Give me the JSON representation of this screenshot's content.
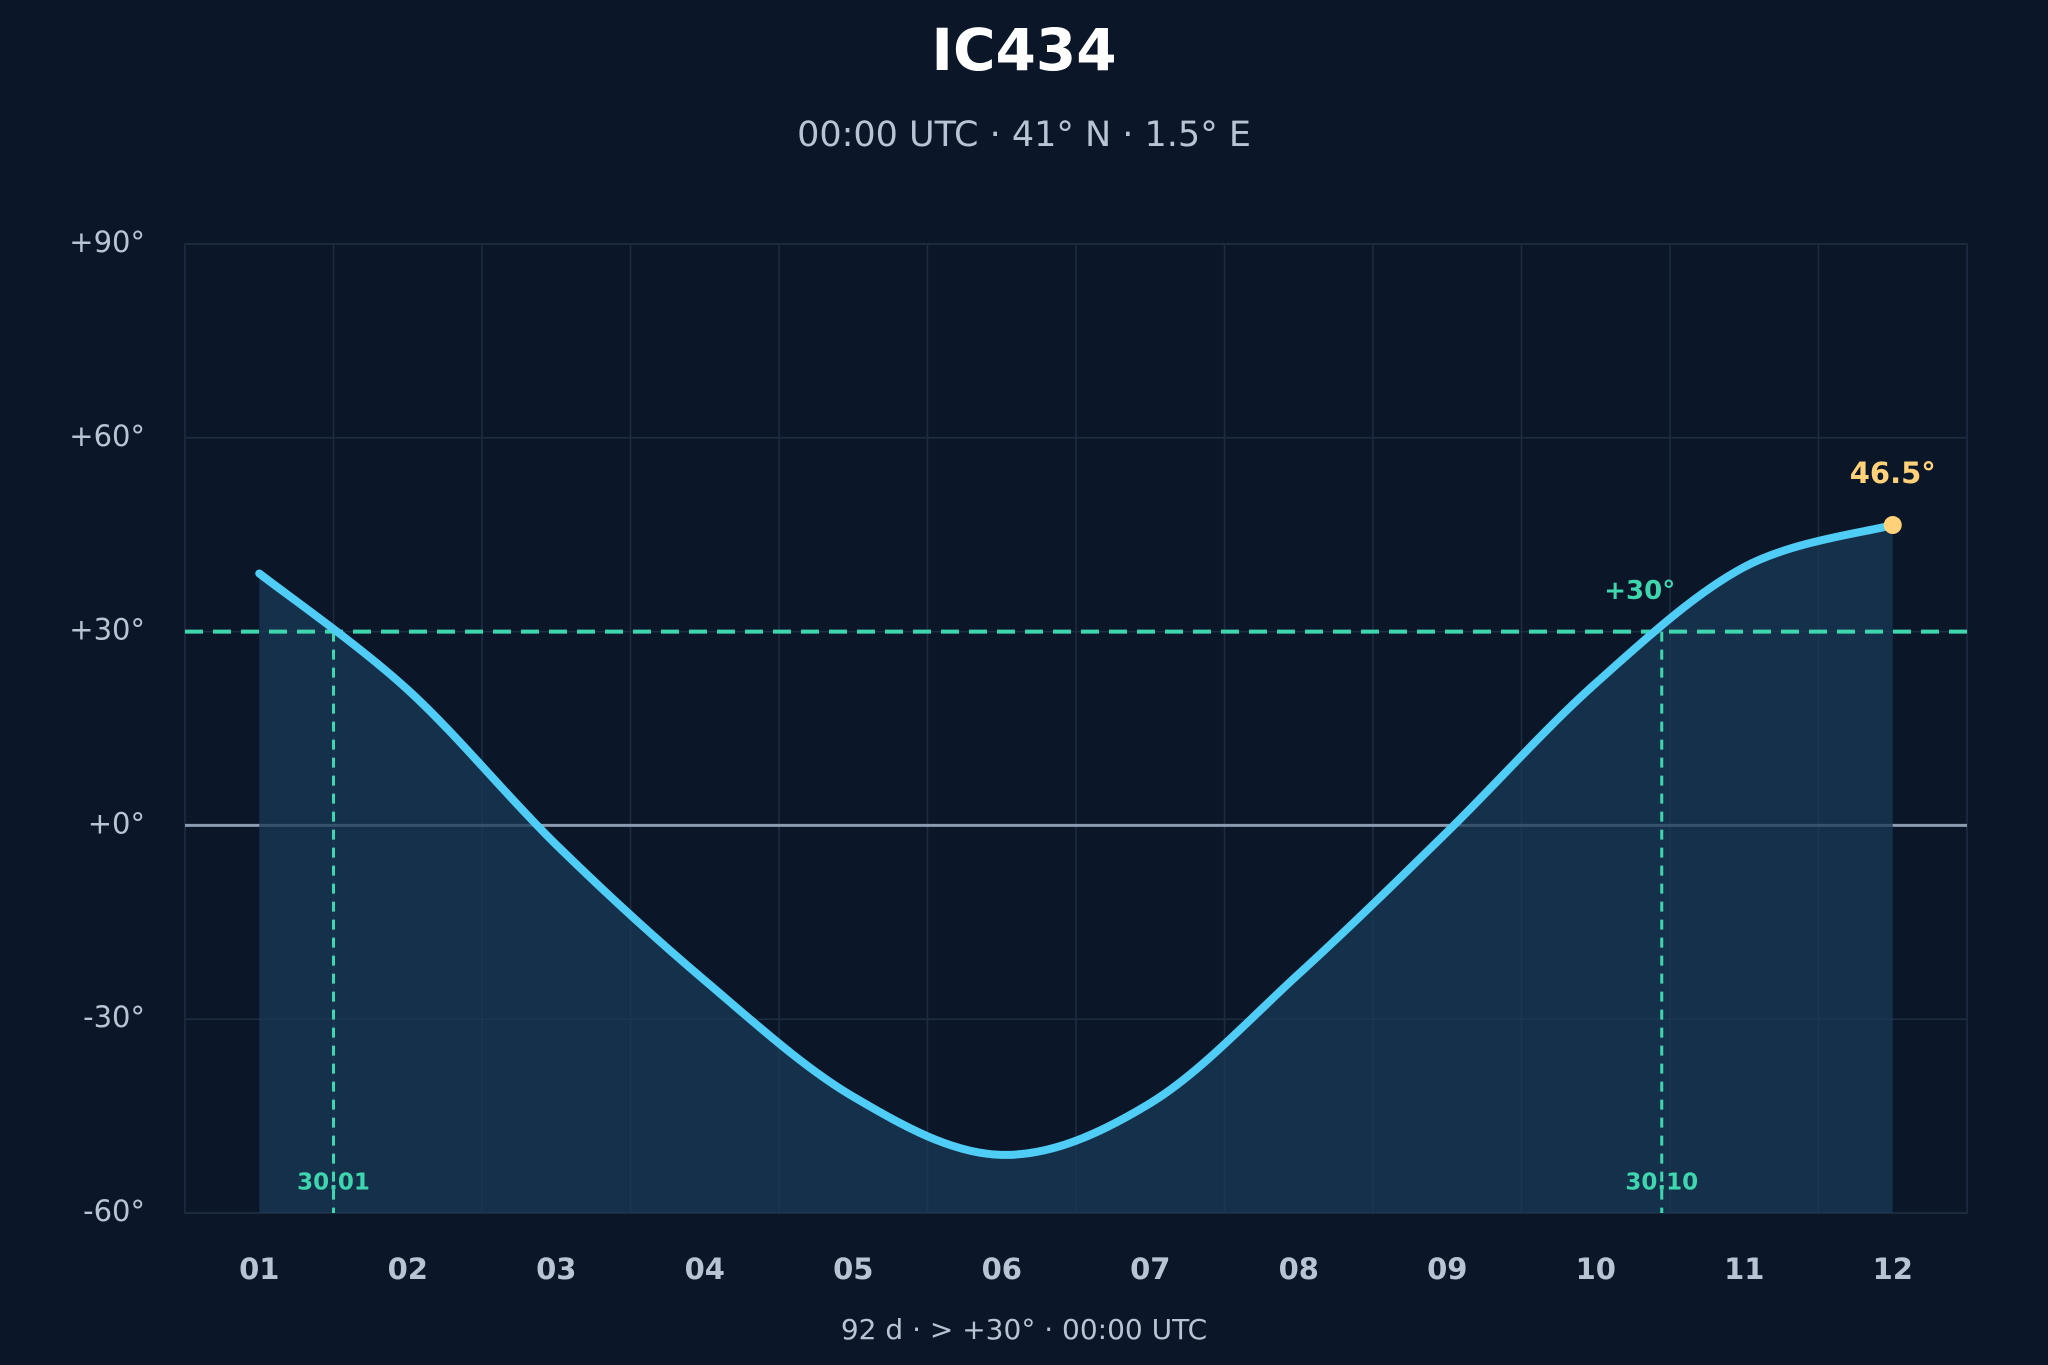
{
  "chart_data": {
    "type": "line",
    "title": "IC434",
    "subtitle": "00:00 UTC · 41° N · 1.5° E",
    "footer": "92 d  ·  > +30°  ·  00:00 UTC",
    "categories": [
      "01",
      "02",
      "03",
      "04",
      "05",
      "06",
      "07",
      "08",
      "09",
      "10",
      "11",
      "12"
    ],
    "values": [
      39,
      21,
      -3,
      -24,
      -42,
      -51,
      -43,
      -23,
      -1,
      22,
      40,
      46.5
    ],
    "value_labels": [
      null,
      null,
      null,
      null,
      null,
      null,
      null,
      null,
      null,
      null,
      null,
      "46.5°"
    ],
    "color": "#4fcdf6",
    "threshold": {
      "value": 30,
      "label": "+30°",
      "color": "#3ed6ae"
    },
    "crossing_labels": [
      "30.01",
      "30.10"
    ],
    "peak_color": "#ffd27a",
    "ylim": [
      -60,
      90
    ],
    "yticks": [
      {
        "value": -60,
        "label": "-60°"
      },
      {
        "value": -30,
        "label": "-30°"
      },
      {
        "value": 0,
        "label": "+0°"
      },
      {
        "value": 30,
        "label": "+30°"
      },
      {
        "value": 60,
        "label": "+60°"
      },
      {
        "value": 90,
        "label": "+90°"
      }
    ],
    "grid": true
  }
}
